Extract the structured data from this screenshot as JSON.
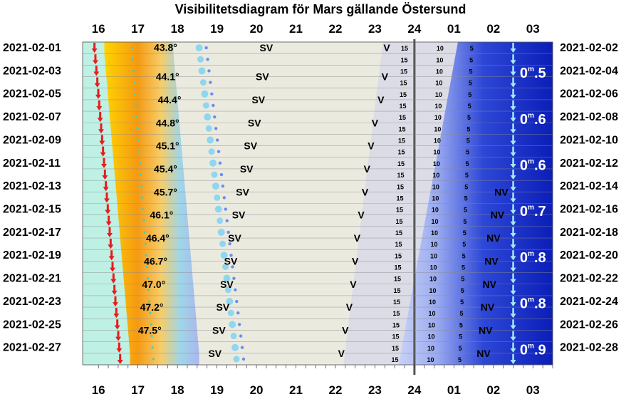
{
  "chart_data": {
    "type": "visibility-diagram",
    "title": "Visibilitetsdiagram för Mars gällande Östersund",
    "hour_labels": [
      "16",
      "17",
      "18",
      "19",
      "20",
      "21",
      "22",
      "23",
      "24",
      "01",
      "02",
      "03"
    ],
    "left_dates": [
      "2021-02-01",
      "2021-02-03",
      "2021-02-05",
      "2021-02-07",
      "2021-02-09",
      "2021-02-11",
      "2021-02-13",
      "2021-02-15",
      "2021-02-17",
      "2021-02-19",
      "2021-02-21",
      "2021-02-23",
      "2021-02-25",
      "2021-02-27"
    ],
    "right_dates": [
      "2021-02-02",
      "2021-02-04",
      "2021-02-06",
      "2021-02-08",
      "2021-02-10",
      "2021-02-12",
      "2021-02-14",
      "2021-02-16",
      "2021-02-18",
      "2021-02-20",
      "2021-02-22",
      "2021-02-24",
      "2021-02-26",
      "2021-02-28"
    ],
    "max_altitudes": [
      "43.8°",
      "44.1°",
      "44.4°",
      "44.8°",
      "45.1°",
      "45.4°",
      "45.7°",
      "46.1°",
      "46.4°",
      "46.7°",
      "47.0°",
      "47.2°",
      "47.5°"
    ],
    "altitude_label_hours": [
      17.7,
      17.75,
      17.8,
      17.75,
      17.75,
      17.7,
      17.7,
      17.6,
      17.5,
      17.45,
      17.4,
      17.35,
      17.3
    ],
    "sunset_hours": [
      15.9,
      15.95,
      16.0,
      16.05,
      16.1,
      16.15,
      16.2,
      16.25,
      16.3,
      16.35,
      16.4,
      16.45,
      16.5,
      16.55
    ],
    "sv_hours": [
      20.25,
      20.15,
      20.05,
      19.95,
      19.85,
      19.75,
      19.65,
      19.55,
      19.45,
      19.35,
      19.25,
      19.15,
      19.05,
      18.95
    ],
    "sv_label": "SV",
    "v_hours": [
      23.3,
      23.25,
      23.15,
      23.0,
      22.9,
      22.8,
      22.75,
      22.65,
      22.55,
      22.5,
      22.45,
      22.35,
      22.25,
      22.15
    ],
    "v_label": "V",
    "nv_label": "NV",
    "nv_hours": [
      null,
      null,
      null,
      null,
      null,
      null,
      26.2,
      26.1,
      26.0,
      25.95,
      25.9,
      25.85,
      25.8,
      25.75
    ],
    "low_altitude_labels": [
      "15",
      "10",
      "5"
    ],
    "mars_set_hour": 26.5,
    "magnitudes": [
      {
        "value": "0.5",
        "row": 1
      },
      {
        "value": "0.6",
        "row": 3
      },
      {
        "value": "0.6",
        "row": 5
      },
      {
        "value": "0.7",
        "row": 7
      },
      {
        "value": "0.8",
        "row": 9
      },
      {
        "value": "0.8",
        "row": 11
      },
      {
        "value": "0.9",
        "row": 13
      }
    ],
    "magnitude_unit": "m",
    "x_range": [
      15.6,
      27.5
    ],
    "colors": {
      "twilight_light": "#bff0e4",
      "sunset_orange": "#f29a1a",
      "sky": "#ebeadf",
      "night_deep": "#0a1fb3",
      "arrow_red": "#e81c1c",
      "arrow_light": "#a6e8f5",
      "dot_blue": "#6b8cf0",
      "midnight_line": "#555555"
    }
  }
}
